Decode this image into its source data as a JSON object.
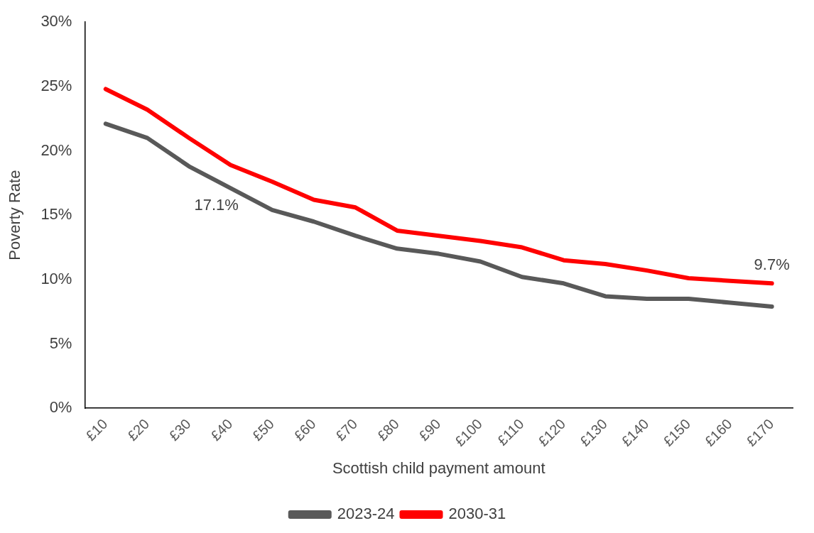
{
  "chart_data": {
    "type": "line",
    "xlabel": "Scottish child payment amount",
    "ylabel": "Poverty Rate",
    "categories": [
      "£10",
      "£20",
      "£30",
      "£40",
      "£50",
      "£60",
      "£70",
      "£80",
      "£90",
      "£100",
      "£110",
      "£120",
      "£130",
      "£140",
      "£150",
      "£160",
      "£170"
    ],
    "series": [
      {
        "name": "2023-24",
        "color": "#595959",
        "values": [
          22.1,
          21.0,
          18.8,
          17.1,
          15.4,
          14.5,
          13.4,
          12.4,
          12.0,
          11.4,
          10.2,
          9.7,
          8.7,
          8.5,
          8.5,
          8.2,
          7.9
        ]
      },
      {
        "name": "2030-31",
        "color": "#ff0000",
        "values": [
          24.8,
          23.2,
          21.0,
          18.9,
          17.6,
          16.2,
          15.6,
          13.8,
          13.4,
          13.0,
          12.5,
          11.5,
          11.2,
          10.7,
          10.1,
          9.9,
          9.7
        ]
      }
    ],
    "annotations": [
      {
        "text": "17.1%",
        "x": "£40",
        "y": 17.1
      },
      {
        "text": "9.7%",
        "x": "£170",
        "y": 9.7
      }
    ],
    "ylim": [
      0,
      30
    ],
    "yticks": [
      {
        "value": 0,
        "label": "0%"
      },
      {
        "value": 5,
        "label": "5%"
      },
      {
        "value": 10,
        "label": "10%"
      },
      {
        "value": 15,
        "label": "15%"
      },
      {
        "value": 20,
        "label": "20%"
      },
      {
        "value": 25,
        "label": "25%"
      },
      {
        "value": 30,
        "label": "30%"
      }
    ],
    "grid": false,
    "legend": "bottom",
    "marker": "none",
    "line_style": "solid"
  }
}
